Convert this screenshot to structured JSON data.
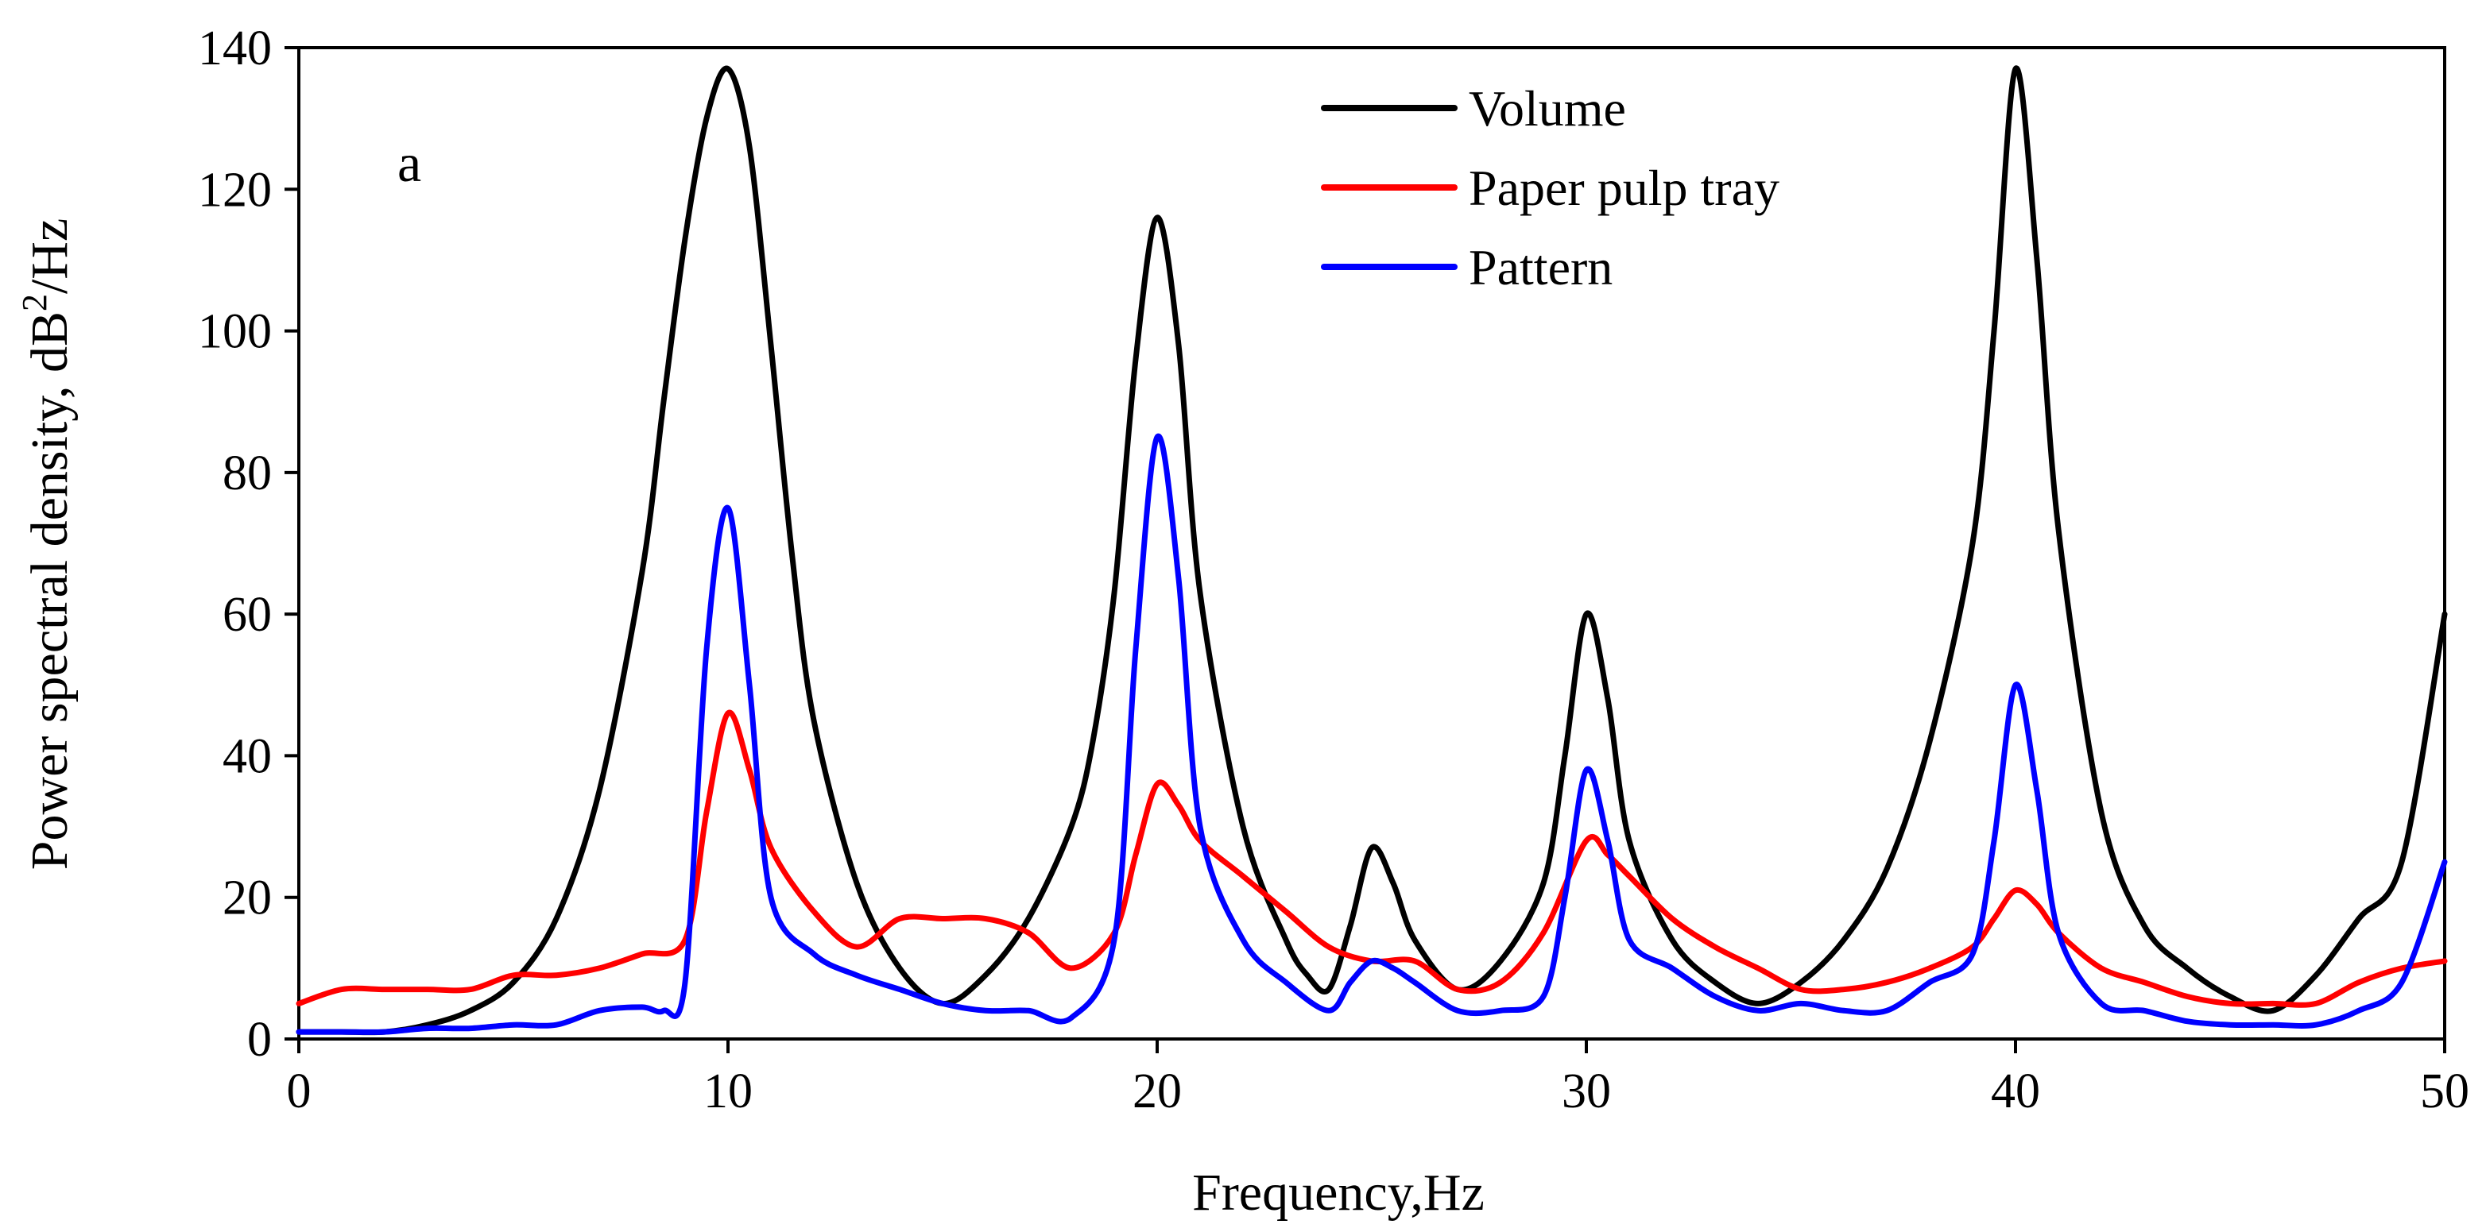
{
  "chart_data": {
    "type": "line",
    "panel_label": "a",
    "xlabel": "Frequency,Hz",
    "ylabel": "Power spectral density, dB",
    "ylabel_superscript": "2",
    "ylabel_suffix": "/Hz",
    "xlim": [
      0,
      50
    ],
    "ylim": [
      0,
      140
    ],
    "xticks": [
      0,
      10,
      20,
      30,
      40,
      50
    ],
    "yticks": [
      0,
      20,
      40,
      60,
      80,
      100,
      120,
      140
    ],
    "grid": false,
    "legend_position": "top-right",
    "series": [
      {
        "name": "Volume",
        "color": "#000000",
        "x": [
          0,
          1,
          2,
          3,
          4,
          5,
          6,
          7,
          8,
          8.5,
          9,
          9.5,
          10,
          10.5,
          11,
          11.5,
          12,
          13,
          14,
          15,
          16,
          17,
          18,
          18.5,
          19,
          19.5,
          20,
          20.5,
          21,
          22,
          23,
          23.5,
          24,
          24.5,
          25,
          25.5,
          26,
          27,
          28,
          29,
          29.5,
          30,
          30.5,
          31,
          32,
          33,
          34,
          35,
          36,
          37,
          38,
          39,
          39.5,
          40,
          40.5,
          41,
          42,
          43,
          44,
          45,
          46,
          47,
          48,
          49,
          50
        ],
        "y": [
          1,
          1,
          1,
          2,
          4,
          8,
          17,
          35,
          66,
          90,
          113,
          130,
          137,
          126,
          98,
          68,
          45,
          22,
          10,
          5,
          9,
          17,
          30,
          42,
          63,
          96,
          116,
          98,
          63,
          30,
          14,
          9,
          7,
          16,
          27,
          22,
          14,
          7,
          11,
          22,
          40,
          60,
          48,
          28,
          14,
          8,
          5,
          8,
          14,
          24,
          42,
          70,
          100,
          137,
          110,
          72,
          32,
          16,
          10,
          6,
          4,
          9,
          17,
          25,
          60
        ]
      },
      {
        "name": "Paper pulp tray",
        "color": "#ff0000",
        "x": [
          0,
          1,
          2,
          3,
          4,
          5,
          6,
          7,
          8,
          9,
          9.5,
          10,
          10.5,
          11,
          12,
          13,
          14,
          15,
          16,
          17,
          18,
          19,
          19.5,
          20,
          20.5,
          21,
          22,
          23,
          24,
          25,
          26,
          27,
          28,
          29,
          30,
          30.5,
          31,
          32,
          33,
          34,
          35,
          36,
          37,
          38,
          39,
          39.5,
          40,
          40.5,
          41,
          42,
          43,
          44,
          45,
          46,
          47,
          48,
          49,
          50
        ],
        "y": [
          5,
          7,
          7,
          7,
          7,
          9,
          9,
          10,
          12,
          14,
          32,
          46,
          38,
          27,
          18,
          13,
          17,
          17,
          17,
          15,
          10,
          15,
          26,
          36,
          33,
          28,
          23,
          18,
          13,
          11,
          11,
          7,
          8,
          15,
          28,
          26,
          23,
          17,
          13,
          10,
          7,
          7,
          8,
          10,
          13,
          17,
          21,
          19,
          15,
          10,
          8,
          6,
          5,
          5,
          5,
          8,
          10,
          11
        ]
      },
      {
        "name": "Pattern",
        "color": "#0000ff",
        "x": [
          0,
          1,
          2,
          3,
          4,
          5,
          6,
          7,
          8,
          8.5,
          9,
          9.5,
          10,
          10.5,
          11,
          12,
          13,
          14,
          15,
          16,
          17,
          18,
          19,
          19.5,
          20,
          20.5,
          21,
          22,
          23,
          24,
          24.5,
          25,
          25.5,
          26,
          27,
          28,
          29,
          29.5,
          30,
          30.5,
          31,
          32,
          33,
          34,
          35,
          36,
          37,
          38,
          39,
          39.5,
          40,
          40.5,
          41,
          42,
          43,
          44,
          45,
          46,
          47,
          48,
          49,
          50
        ],
        "y": [
          1,
          1,
          1,
          1.5,
          1.5,
          2,
          2,
          4,
          4.5,
          4,
          8,
          55,
          75,
          50,
          20,
          12,
          9,
          7,
          5,
          4,
          4,
          3,
          14,
          55,
          85,
          65,
          30,
          14,
          8,
          4,
          8,
          11,
          10,
          8,
          4,
          4,
          6,
          20,
          38,
          28,
          14,
          10,
          6,
          4,
          5,
          4,
          4,
          8,
          12,
          28,
          50,
          35,
          15,
          5,
          4,
          2.5,
          2,
          2,
          2,
          4,
          8,
          25
        ]
      }
    ]
  }
}
